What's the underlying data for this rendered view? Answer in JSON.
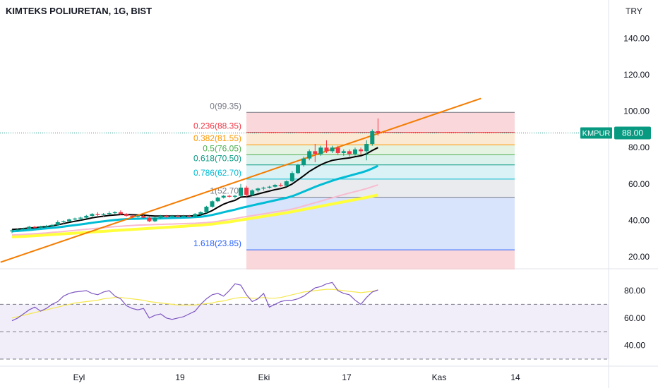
{
  "header": {
    "title": "KIMTEKS POLIURETAN, 1G, BIST"
  },
  "currency": "TRY",
  "price_badge": {
    "symbol": "KMPUR",
    "value": "88.00"
  },
  "colors": {
    "up": "#089981",
    "down": "#f23645",
    "fast_ma": "#000000",
    "slow_ma": "#00bcd4",
    "light_ma": "#f8bbd0",
    "yellow_ma": "#ffff3b",
    "trend": "#f57c00",
    "rsi": "#7e57c2",
    "rsi_ma": "#f5e74f",
    "badge_bg": "#089981"
  },
  "x_axis": {
    "labels": [
      "Eyl",
      "19",
      "Eki",
      "17",
      "Kas",
      "14"
    ]
  },
  "price_axis": {
    "labels": [
      "140.00",
      "120.00",
      "100.00",
      "80.00",
      "60.00",
      "40.00",
      "20.00"
    ]
  },
  "rsi_axis": {
    "labels": [
      "80.00",
      "60.00",
      "40.00"
    ]
  },
  "fib_levels": [
    {
      "label": "0(99.35)",
      "price": 99.35,
      "color": "#787b86"
    },
    {
      "label": "0.236(88.35)",
      "price": 88.35,
      "color": "#f23645"
    },
    {
      "label": "0.382(81.55)",
      "price": 81.55,
      "color": "#ff9800"
    },
    {
      "label": "0.5(76.05)",
      "price": 76.05,
      "color": "#4caf50"
    },
    {
      "label": "0.618(70.50)",
      "price": 70.5,
      "color": "#089981"
    },
    {
      "label": "0.786(62.70)",
      "price": 62.7,
      "color": "#00bcd4"
    },
    {
      "label": "1(52.70)",
      "price": 52.7,
      "color": "#787b86"
    },
    {
      "label": "1.618(23.85)",
      "price": 23.85,
      "color": "#2962ff"
    }
  ],
  "chart_data": {
    "type": "candlestick",
    "title": "KIMTEKS POLIURETAN, 1G, BIST",
    "ylim": [
      20,
      140
    ],
    "rsi_ylim": [
      30,
      90
    ],
    "last_price": 88.0,
    "candles": [
      [
        34,
        35,
        33,
        34.5
      ],
      [
        34.5,
        35.5,
        34,
        35
      ],
      [
        35,
        36,
        34.5,
        35.5
      ],
      [
        35.5,
        37,
        35,
        36.5
      ],
      [
        36.5,
        37,
        35.5,
        36
      ],
      [
        36,
        37,
        35.5,
        36.5
      ],
      [
        36.5,
        37.5,
        36,
        37
      ],
      [
        37,
        38,
        36.5,
        37.5
      ],
      [
        37.5,
        40,
        37,
        39
      ],
      [
        39,
        40,
        38,
        39.5
      ],
      [
        39.5,
        41,
        39,
        40.5
      ],
      [
        40.5,
        41.5,
        40,
        41
      ],
      [
        41,
        42,
        40,
        41.5
      ],
      [
        41.5,
        43,
        41,
        42.5
      ],
      [
        42.5,
        44,
        42,
        43.5
      ],
      [
        43.5,
        44.5,
        42.5,
        43
      ],
      [
        43,
        44,
        42,
        43.5
      ],
      [
        43.5,
        45,
        43,
        44
      ],
      [
        44,
        45,
        43.5,
        44.5
      ],
      [
        44.5,
        45.5,
        43,
        43.5
      ],
      [
        43.5,
        44,
        42,
        42.5
      ],
      [
        42.5,
        43,
        41.5,
        42
      ],
      [
        42,
        43,
        41.5,
        42.5
      ],
      [
        42.5,
        43,
        41,
        41.5
      ],
      [
        41.5,
        42,
        39,
        39.5
      ],
      [
        39.5,
        42,
        39,
        41.5
      ],
      [
        41.5,
        43,
        41,
        42.5
      ],
      [
        42.5,
        43,
        41.5,
        42
      ],
      [
        42,
        43,
        41.5,
        42.5
      ],
      [
        42.5,
        43,
        41.5,
        42
      ],
      [
        42,
        43,
        41.5,
        42.5
      ],
      [
        42.5,
        43,
        41.5,
        42
      ],
      [
        42,
        44,
        41.5,
        43.5
      ],
      [
        43.5,
        45,
        43,
        44.5
      ],
      [
        44.5,
        48,
        44,
        47.5
      ],
      [
        47.5,
        51,
        47,
        50.5
      ],
      [
        50.5,
        53,
        50,
        52.5
      ],
      [
        52.5,
        54,
        52,
        53.5
      ],
      [
        53.5,
        54,
        52.5,
        53
      ],
      [
        53,
        54,
        52,
        53.5
      ],
      [
        53.5,
        60,
        53,
        58
      ],
      [
        58,
        59,
        53,
        54
      ],
      [
        54,
        57,
        53.5,
        56.5
      ],
      [
        56.5,
        58,
        55.5,
        57.5
      ],
      [
        57.5,
        58.5,
        56.5,
        58
      ],
      [
        58,
        59,
        57.5,
        58.5
      ],
      [
        58.5,
        60,
        58,
        59.5
      ],
      [
        59.5,
        60.5,
        58.5,
        59
      ],
      [
        59,
        62,
        58.5,
        61.5
      ],
      [
        61.5,
        67,
        61,
        66
      ],
      [
        66,
        71,
        65.5,
        70.5
      ],
      [
        70.5,
        75,
        69.5,
        74
      ],
      [
        74,
        79,
        73,
        78
      ],
      [
        78,
        82,
        72,
        76.5
      ],
      [
        76.5,
        81,
        75.5,
        80
      ],
      [
        80,
        84,
        77,
        78
      ],
      [
        78,
        81,
        77,
        80
      ],
      [
        80,
        81,
        76,
        77
      ],
      [
        77,
        79,
        75.5,
        78
      ],
      [
        78,
        79,
        75,
        76.5
      ],
      [
        76.5,
        80,
        75.5,
        79
      ],
      [
        79,
        80,
        76,
        78
      ],
      [
        78,
        84,
        73,
        82
      ],
      [
        82,
        90,
        81,
        89
      ],
      [
        89,
        96,
        86.5,
        88
      ]
    ],
    "series": [
      {
        "name": "",
        "values": [
          35,
          35.2,
          35.5,
          35.8,
          36,
          36.3,
          36.6,
          37,
          37.6,
          38.2,
          38.9,
          39.5,
          40.1,
          40.7,
          41.4,
          41.9,
          42.3,
          42.7,
          43,
          43.2,
          43.2,
          43.1,
          43,
          42.9,
          42.6,
          42.4,
          42.4,
          42.4,
          42.4,
          42.4,
          42.4,
          42.4,
          42.6,
          43,
          44,
          45.4,
          47.2,
          48.9,
          50.1,
          51,
          52.8,
          53,
          53.7,
          54.5,
          55.3,
          56.1,
          56.9,
          57.5,
          58.4,
          60,
          62.2,
          64.5,
          66.9,
          68.8,
          70.6,
          71.9,
          73,
          73.5,
          74,
          74.3,
          75,
          75.5,
          76.6,
          78.4,
          80
        ]
      },
      {
        "name": "",
        "values": [
          34,
          34.2,
          34.4,
          34.7,
          35,
          35.3,
          35.6,
          35.9,
          36.2,
          36.6,
          37,
          37.4,
          37.8,
          38.2,
          38.7,
          39.1,
          39.5,
          39.9,
          40.2,
          40.5,
          40.7,
          40.8,
          40.9,
          41,
          41,
          41,
          41.1,
          41.2,
          41.3,
          41.4,
          41.5,
          41.6,
          41.8,
          42,
          42.4,
          43,
          43.7,
          44.5,
          45.2,
          45.9,
          46.8,
          47.5,
          48.2,
          48.9,
          49.6,
          50.3,
          51,
          51.7,
          52.4,
          53.3,
          54.5,
          55.8,
          57.1,
          58.4,
          59.6,
          60.7,
          61.8,
          62.8,
          63.7,
          64.5,
          65.4,
          66.2,
          67.2,
          68.5,
          70
        ]
      },
      {
        "name": "",
        "values": [
          32,
          32.1,
          32.3,
          32.5,
          32.7,
          32.9,
          33.1,
          33.4,
          33.6,
          33.9,
          34.2,
          34.5,
          34.8,
          35.1,
          35.4,
          35.7,
          36,
          36.3,
          36.6,
          36.8,
          37,
          37.2,
          37.4,
          37.5,
          37.6,
          37.7,
          37.8,
          37.9,
          38,
          38.1,
          38.2,
          38.3,
          38.4,
          38.6,
          38.8,
          39.1,
          39.5,
          40,
          40.5,
          41,
          41.6,
          42.1,
          42.6,
          43.1,
          43.6,
          44.1,
          44.6,
          45.1,
          45.6,
          46.2,
          47,
          47.9,
          48.8,
          49.7,
          50.6,
          51.5,
          52.4,
          53.3,
          54.2,
          55,
          55.8,
          56.6,
          57.5,
          58.5,
          59.5
        ]
      },
      {
        "name": "",
        "values": [
          31,
          31.1,
          31.2,
          31.4,
          31.6,
          31.8,
          32,
          32.2,
          32.4,
          32.6,
          32.8,
          33,
          33.2,
          33.4,
          33.6,
          33.8,
          34,
          34.2,
          34.4,
          34.6,
          34.8,
          35,
          35.2,
          35.4,
          35.6,
          35.8,
          36,
          36.2,
          36.4,
          36.6,
          36.8,
          37,
          37.2,
          37.4,
          37.7,
          38,
          38.4,
          38.8,
          39.2,
          39.7,
          40.2,
          40.7,
          41.2,
          41.7,
          42.2,
          42.7,
          43.2,
          43.7,
          44.2,
          44.8,
          45.4,
          46,
          46.6,
          47.2,
          47.8,
          48.4,
          49,
          49.6,
          50.2,
          50.8,
          51.4,
          52,
          52.6,
          53.3,
          54
        ]
      }
    ],
    "trend_line": [
      [
        -2,
        17
      ],
      [
        82,
        107
      ]
    ],
    "rsi": [
      58,
      60,
      63,
      66,
      68,
      65,
      67,
      70,
      72,
      76,
      78,
      79,
      79.5,
      80,
      78,
      77,
      79,
      80,
      76,
      74,
      69,
      67,
      66,
      67,
      60,
      62,
      63,
      60,
      59,
      60,
      61,
      63,
      65,
      70,
      74,
      77,
      78,
      76,
      80,
      85,
      84,
      77,
      72,
      74,
      78,
      68,
      70,
      72,
      73,
      73,
      74,
      76,
      79,
      82,
      83,
      85,
      86,
      80,
      78,
      77,
      73,
      70,
      75,
      79,
      80.5
    ],
    "rsi_ma": [
      60,
      61,
      62,
      63,
      64,
      65,
      66,
      67,
      68,
      69,
      70,
      71,
      71.5,
      72,
      72.5,
      73,
      74,
      74.5,
      75,
      75,
      74.5,
      74,
      73.5,
      73,
      72,
      71.5,
      71,
      70.5,
      70,
      69.5,
      69.5,
      69.5,
      69.5,
      70,
      70.5,
      71,
      72,
      72.5,
      73.5,
      74.5,
      75,
      75,
      74.5,
      74.5,
      75,
      74.5,
      74.5,
      75,
      76,
      77,
      78,
      79,
      79.5,
      80,
      80.5,
      81,
      81,
      80.5,
      80,
      79.5,
      79,
      78.5,
      79,
      79.5,
      80.5
    ]
  }
}
